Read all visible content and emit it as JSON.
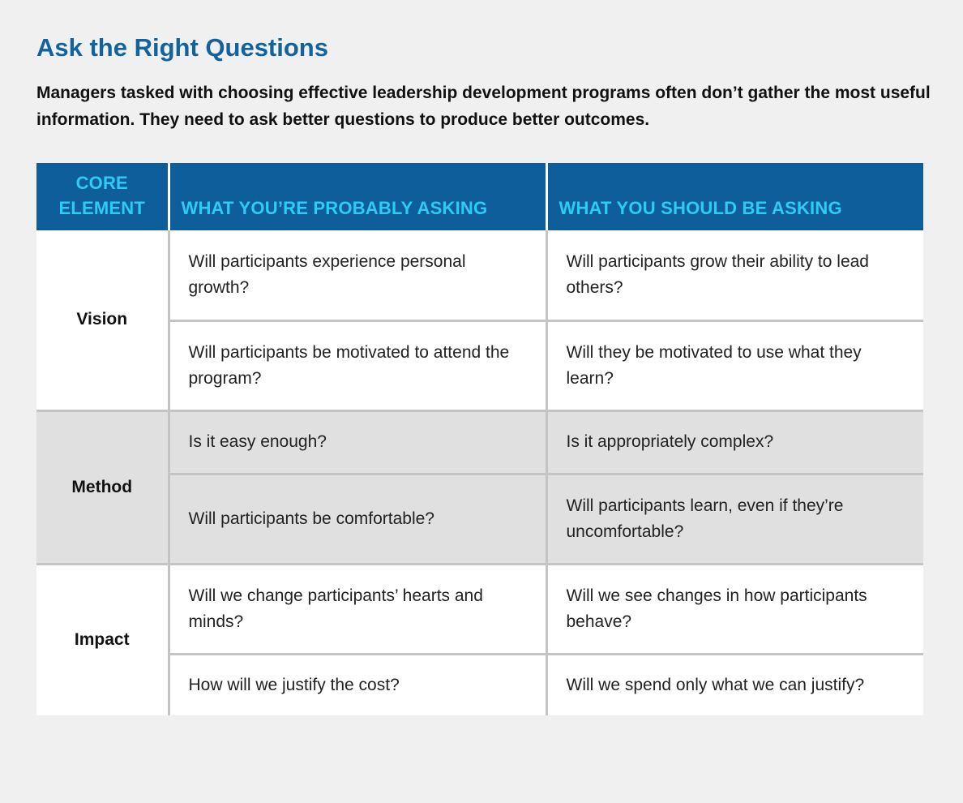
{
  "header": {
    "title": "Ask the Right Questions",
    "subtitle": "Managers tasked with choosing effective leadership development programs often don’t gather the most useful information. They need to ask better questions to produce better outcomes."
  },
  "table": {
    "columns": {
      "core_line1": "CORE",
      "core_line2": "ELEMENT",
      "probably": "WHAT YOU’RE PROBABLY ASKING",
      "should": "WHAT YOU SHOULD BE ASKING"
    },
    "groups": [
      {
        "element": "Vision",
        "rows": [
          {
            "probably": "Will participants experience personal growth?",
            "should": "Will participants grow their ability to lead others?"
          },
          {
            "probably": "Will participants be motivated to attend the program?",
            "should": "Will they be motivated to use what they learn?"
          }
        ]
      },
      {
        "element": "Method",
        "rows": [
          {
            "probably": "Is it easy enough?",
            "should": "Is it appropriately complex?"
          },
          {
            "probably": "Will participants be comfortable?",
            "should": "Will participants learn, even if they’re uncomfortable?"
          }
        ]
      },
      {
        "element": "Impact",
        "rows": [
          {
            "probably": "Will we change participants’ hearts and minds?",
            "should": "Will we see changes in how participants behave?"
          },
          {
            "probably": "How will we justify the cost?",
            "should": "Will we spend only what we can justify?"
          }
        ]
      }
    ]
  },
  "colors": {
    "title": "#12629e",
    "header_bg": "#0e5e9c",
    "header_text": "#2ecbf6",
    "band_white": "#ffffff",
    "band_grey": "#e0e0e0",
    "divider": "#c4c4c4",
    "page_bg": "#f0f0f0"
  }
}
